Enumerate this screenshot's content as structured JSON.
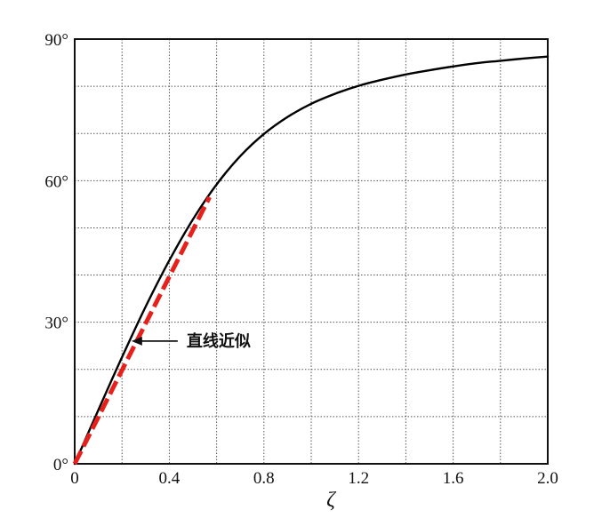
{
  "chart_data": {
    "type": "line",
    "title": "",
    "xlabel": "ζ",
    "ylabel": "",
    "xlim": [
      0,
      2.0
    ],
    "ylim": [
      0,
      90
    ],
    "grid": true,
    "x_ticks": [
      0,
      0.4,
      0.8,
      1.2,
      1.6,
      2.0
    ],
    "x_tick_labels": [
      "0",
      "0.4",
      "0.8",
      "1.2",
      "1.6",
      "2.0"
    ],
    "y_ticks": [
      0,
      30,
      60,
      90
    ],
    "y_tick_labels": [
      "0°",
      "30°",
      "60°",
      "90°"
    ],
    "series": [
      {
        "color": "#000000",
        "style": "solid",
        "x": [
          0,
          0.1,
          0.2,
          0.3,
          0.4,
          0.5,
          0.6,
          0.7,
          0.8,
          0.9,
          1.0,
          1.1,
          1.2,
          1.3,
          1.4,
          1.5,
          1.6,
          1.7,
          1.8,
          1.9,
          2.0
        ],
        "y": [
          0,
          11.4,
          22.6,
          33.3,
          43.1,
          51.8,
          59.2,
          65.2,
          69.9,
          73.5,
          76.3,
          78.4,
          80.1,
          81.4,
          82.5,
          83.4,
          84.2,
          84.9,
          85.4,
          85.9,
          86.3
        ]
      },
      {
        "color": "#e8201c",
        "style": "dashed",
        "x": [
          0,
          0.57
        ],
        "y": [
          0,
          56.5
        ]
      }
    ],
    "annotations": [
      {
        "text": "直线近似",
        "arrow_to": {
          "x": 0.24,
          "y": 26
        }
      }
    ]
  }
}
